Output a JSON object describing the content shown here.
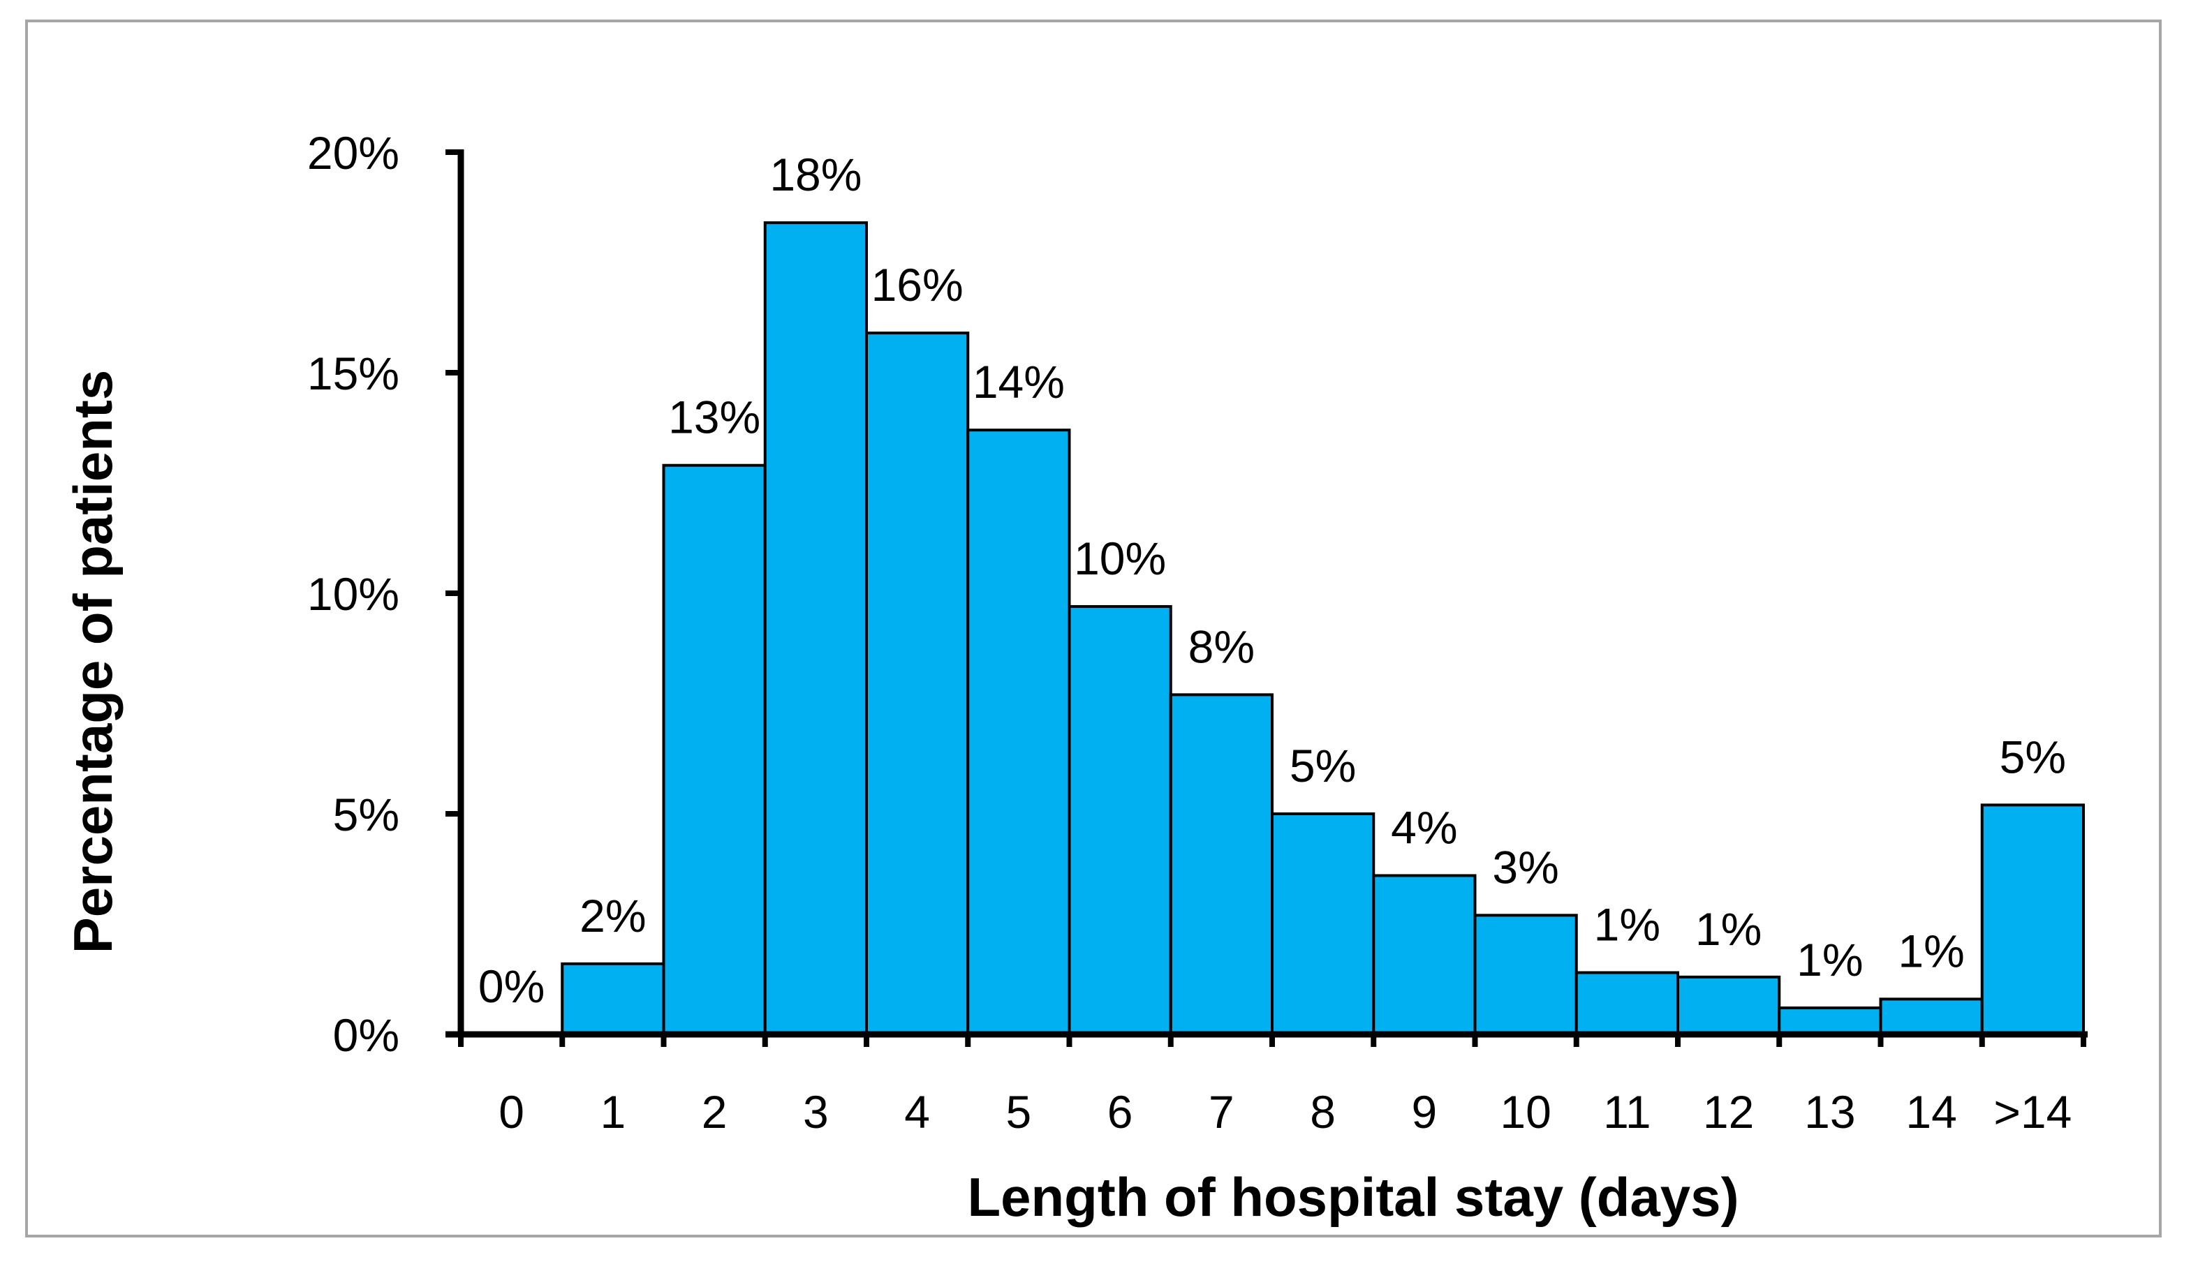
{
  "chart_data": {
    "type": "bar",
    "title": "",
    "xlabel": "Length of hospital stay (days)",
    "ylabel": "Percentage of patients",
    "categories": [
      "0",
      "1",
      "2",
      "3",
      "4",
      "5",
      "6",
      "7",
      "8",
      "9",
      "10",
      "11",
      "12",
      "13",
      "14",
      ">14"
    ],
    "values": [
      0.0,
      1.6,
      12.9,
      18.4,
      15.9,
      13.7,
      9.7,
      7.7,
      5.0,
      3.6,
      2.7,
      1.4,
      1.3,
      0.6,
      0.8,
      5.2
    ],
    "data_labels": [
      "0%",
      "2%",
      "13%",
      "18%",
      "16%",
      "14%",
      "10%",
      "8%",
      "5%",
      "4%",
      "3%",
      "1%",
      "1%",
      "1%",
      "1%",
      "5%"
    ],
    "ylim": [
      0,
      20
    ],
    "yticks": [
      0,
      5,
      10,
      15,
      20
    ],
    "ytick_labels": [
      "0%",
      "5%",
      "10%",
      "15%",
      "20%"
    ],
    "grid": false,
    "legend": "none",
    "colors": {
      "bar_fill": "#00B0F0",
      "bar_stroke": "#000000",
      "frame": "#A6A6A6"
    }
  }
}
